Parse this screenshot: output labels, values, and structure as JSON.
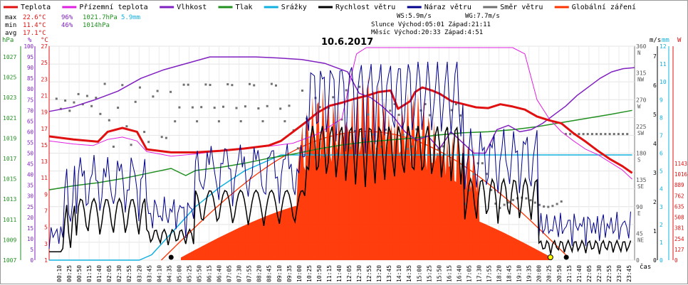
{
  "chart_data": {
    "type": "line",
    "title": "10.6.2017",
    "x_label": "čas",
    "x_ticks": [
      "00:10",
      "00:25",
      "00:50",
      "01:15",
      "01:40",
      "02:05",
      "02:30",
      "02:55",
      "03:20",
      "03:45",
      "04:10",
      "04:35",
      "05:00",
      "05:25",
      "05:50",
      "06:15",
      "06:40",
      "07:05",
      "07:30",
      "07:55",
      "08:20",
      "08:45",
      "09:10",
      "09:35",
      "10:00",
      "10:25",
      "10:50",
      "11:15",
      "11:40",
      "12:05",
      "12:30",
      "12:55",
      "13:20",
      "13:45",
      "14:10",
      "14:35",
      "15:00",
      "15:25",
      "15:50",
      "16:15",
      "16:40",
      "17:05",
      "17:30",
      "17:55",
      "18:20",
      "18:45",
      "19:10",
      "19:35",
      "20:00",
      "20:25",
      "20:50",
      "21:15",
      "21:40",
      "22:05",
      "22:30",
      "22:55",
      "23:20",
      "23:45"
    ],
    "legend": [
      {
        "name": "Teplota",
        "color": "#e01010"
      },
      {
        "name": "Přízemní teplota",
        "color": "#e020e0"
      },
      {
        "name": "Vlhkost",
        "color": "#8020c0"
      },
      {
        "name": "Tlak",
        "color": "#209020"
      },
      {
        "name": "Srážky",
        "color": "#10b0e0"
      },
      {
        "name": "Rychlost větru",
        "color": "#000000"
      },
      {
        "name": "Náraz větru",
        "color": "#00008c"
      },
      {
        "name": "Směr větru",
        "color": "#707070"
      },
      {
        "name": "Globální záření",
        "color": "#ff3300"
      }
    ],
    "stats": {
      "max_label": "max",
      "max_temp": "22.6°C",
      "max_hum": "96%",
      "max_press": "1021.7hPa",
      "rain": "5.9mm",
      "min_label": "min",
      "min_temp": "11.4°C",
      "min_hum": "46%",
      "min_press": "1014hPa",
      "avg_label": "avg",
      "avg_temp": "17.1°C"
    },
    "info": {
      "ws": "WS:5.9m/s",
      "wg": "WG:7.7m/s",
      "sun": "Slunce Východ:05:01   Západ:21:11",
      "moon": "Měsíc  Východ:20:33   Západ:4:51"
    },
    "axes": {
      "hpa": {
        "unit": "hPa",
        "ticks": [
          "1027",
          "1025",
          "1023",
          "1021",
          "1019",
          "1017",
          "1015",
          "1013",
          "1011",
          "1009",
          "1007"
        ]
      },
      "percent": {
        "unit": "%",
        "ticks": [
          "100",
          "95",
          "90",
          "85",
          "80",
          "75",
          "70",
          "65",
          "60",
          "55",
          "50",
          "45",
          "40",
          "35",
          "30",
          "25",
          "20",
          "15",
          "10",
          "5",
          "0"
        ]
      },
      "celsius": {
        "unit": "°C",
        "ticks": [
          "27",
          "25",
          "23",
          "21",
          "19",
          "17",
          "15",
          "13",
          "11",
          "9",
          "7",
          "5",
          "3",
          "1"
        ]
      },
      "direction": {
        "ticks": [
          "360",
          "315",
          "270",
          "225",
          "180",
          "135",
          "90",
          "45",
          "0"
        ],
        "letters": [
          "N",
          "NW",
          "W",
          "SW",
          "S",
          "SE",
          "E",
          "NE",
          ""
        ]
      },
      "ms": {
        "unit": "m/s",
        "ticks": [
          "7",
          "6",
          "5",
          "4",
          "3",
          "2",
          "1",
          "0"
        ]
      },
      "mm": {
        "unit": "mm",
        "ticks": [
          "12",
          "11",
          "10",
          "9",
          "8",
          "7",
          "6",
          "5",
          "4",
          "3",
          "2",
          "1",
          "0"
        ]
      },
      "w": {
        "unit": "W",
        "ticks": [
          "1143",
          "1016",
          "889",
          "762",
          "635",
          "508",
          "381",
          "254",
          "127",
          "0"
        ]
      }
    },
    "series": [
      {
        "name": "Teplota",
        "color": "#e01010",
        "points": [
          [
            0,
            16.2
          ],
          [
            1,
            15.8
          ],
          [
            2,
            15.5
          ],
          [
            2.4,
            16.8
          ],
          [
            3,
            17.3
          ],
          [
            3.6,
            16.8
          ],
          [
            4,
            14.5
          ],
          [
            5,
            14.1
          ],
          [
            6,
            14.1
          ],
          [
            7,
            14.3
          ],
          [
            8,
            14.6
          ],
          [
            9,
            15.0
          ],
          [
            9.5,
            15.6
          ],
          [
            10,
            16.8
          ],
          [
            10.5,
            18.0
          ],
          [
            11,
            19.3
          ],
          [
            11.5,
            20.2
          ],
          [
            12,
            20.6
          ],
          [
            12.5,
            21.1
          ],
          [
            13,
            21.5
          ],
          [
            13.5,
            22.0
          ],
          [
            14,
            22.2
          ],
          [
            14.3,
            19.8
          ],
          [
            14.8,
            20.8
          ],
          [
            15,
            22.0
          ],
          [
            15.3,
            22.6
          ],
          [
            15.7,
            22.2
          ],
          [
            16,
            21.8
          ],
          [
            16.5,
            20.8
          ],
          [
            17,
            20.4
          ],
          [
            17.5,
            20.0
          ],
          [
            18,
            19.9
          ],
          [
            18.5,
            20.4
          ],
          [
            19,
            20.1
          ],
          [
            19.5,
            19.7
          ],
          [
            20,
            18.8
          ],
          [
            20.5,
            18.3
          ],
          [
            21,
            17.9
          ],
          [
            21.5,
            16.6
          ],
          [
            22,
            15.5
          ],
          [
            22.5,
            14.3
          ],
          [
            23,
            13.2
          ],
          [
            23.5,
            12.3
          ],
          [
            23.9,
            11.4
          ]
        ]
      },
      {
        "name": "Přízemní teplota",
        "color": "#e020e0",
        "points": [
          [
            0,
            15.6
          ],
          [
            1,
            15.2
          ],
          [
            1.8,
            15.0
          ],
          [
            2.4,
            15.8
          ],
          [
            3,
            16.1
          ],
          [
            3.6,
            15.6
          ],
          [
            4,
            14.2
          ],
          [
            5,
            13.6
          ],
          [
            6,
            13.9
          ],
          [
            7,
            14.3
          ],
          [
            8,
            14.6
          ],
          [
            9,
            14.9
          ],
          [
            10,
            15.3
          ],
          [
            11,
            16.5
          ],
          [
            12,
            18.5
          ],
          [
            12.3,
            23
          ],
          [
            12.6,
            27
          ],
          [
            13,
            28
          ],
          [
            13.5,
            29
          ],
          [
            14,
            29
          ],
          [
            14.5,
            29
          ],
          [
            15,
            29
          ],
          [
            15.5,
            29
          ],
          [
            16,
            28.5
          ],
          [
            16.5,
            28
          ],
          [
            17,
            28
          ],
          [
            17.5,
            29
          ],
          [
            18,
            28
          ],
          [
            18.5,
            29
          ],
          [
            19,
            28.5
          ],
          [
            19.5,
            27
          ],
          [
            20,
            21
          ],
          [
            20.5,
            18.5
          ],
          [
            21,
            16.8
          ],
          [
            21.5,
            15.6
          ],
          [
            22,
            14.5
          ],
          [
            22.5,
            13.8
          ],
          [
            23,
            12.8
          ],
          [
            23.5,
            11.8
          ],
          [
            23.9,
            10.6
          ]
        ]
      },
      {
        "name": "Vlhkost",
        "color": "#8020c0",
        "points": [
          [
            0,
            69.5
          ],
          [
            1,
            71.5
          ],
          [
            2,
            75
          ],
          [
            3,
            79
          ],
          [
            4,
            85
          ],
          [
            5,
            89
          ],
          [
            6,
            92
          ],
          [
            7,
            95
          ],
          [
            8,
            95
          ],
          [
            9,
            95
          ],
          [
            10,
            94.5
          ],
          [
            11,
            93.8
          ],
          [
            12,
            92
          ],
          [
            13,
            88
          ],
          [
            13.5,
            78
          ],
          [
            14,
            76
          ],
          [
            14.5,
            72
          ],
          [
            15,
            67
          ],
          [
            15.5,
            60
          ],
          [
            16,
            56
          ],
          [
            16.5,
            58
          ],
          [
            17,
            52
          ],
          [
            17.5,
            60
          ],
          [
            18,
            55
          ],
          [
            18.5,
            50
          ],
          [
            19,
            50
          ],
          [
            19.5,
            61
          ],
          [
            20,
            63
          ],
          [
            20.5,
            60
          ],
          [
            21,
            61
          ],
          [
            21.5,
            64
          ],
          [
            22,
            68
          ],
          [
            22.5,
            72
          ],
          [
            23,
            77
          ],
          [
            23.5,
            81
          ],
          [
            24,
            85
          ],
          [
            24.5,
            88
          ],
          [
            25,
            89.5
          ],
          [
            25.5,
            90
          ]
        ]
      },
      {
        "name": "Tlak",
        "color": "#209020",
        "points": [
          [
            0,
            1013.9
          ],
          [
            1,
            1014.3
          ],
          [
            2,
            1014.6
          ],
          [
            3,
            1015
          ],
          [
            4,
            1015.5
          ],
          [
            5,
            1016
          ],
          [
            5.6,
            1015.3
          ],
          [
            6,
            1015.8
          ],
          [
            7,
            1016.1
          ],
          [
            8,
            1016.5
          ],
          [
            9,
            1017.0
          ],
          [
            10,
            1017.4
          ],
          [
            11,
            1017.9
          ],
          [
            12,
            1018.3
          ],
          [
            13,
            1018.6
          ],
          [
            14,
            1018.8
          ],
          [
            15,
            1019.0
          ],
          [
            16,
            1019.3
          ],
          [
            17,
            1019.5
          ],
          [
            18,
            1019.6
          ],
          [
            19,
            1019.8
          ],
          [
            20,
            1020.1
          ],
          [
            21,
            1020.5
          ],
          [
            22,
            1020.9
          ],
          [
            23,
            1021.3
          ],
          [
            23.9,
            1021.7
          ]
        ]
      },
      {
        "name": "Srážky",
        "color": "#10b0e0",
        "points": [
          [
            0,
            0
          ],
          [
            3.7,
            0
          ],
          [
            4.2,
            0.3
          ],
          [
            5,
            1.5
          ],
          [
            6,
            3.0
          ],
          [
            7,
            4.1
          ],
          [
            8,
            5.0
          ],
          [
            9,
            5.6
          ],
          [
            9.5,
            5.9
          ],
          [
            23.9,
            5.9
          ]
        ]
      }
    ]
  }
}
